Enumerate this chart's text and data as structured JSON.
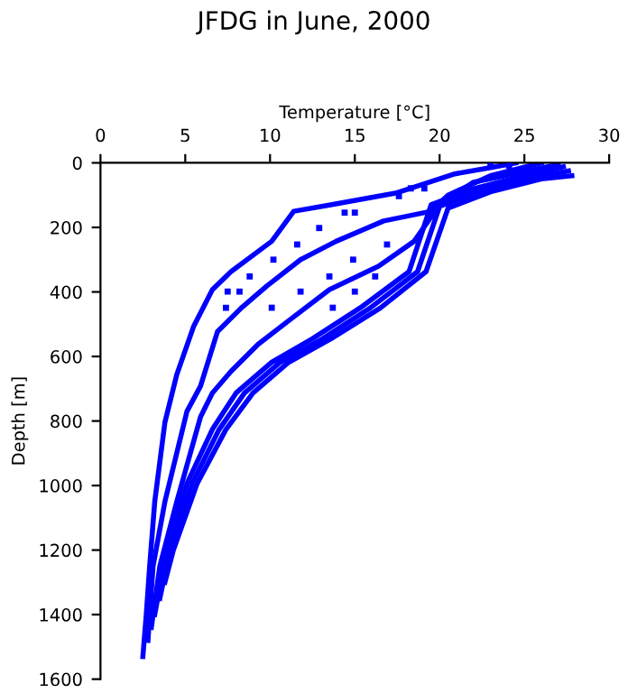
{
  "chart_data": {
    "type": "line",
    "title": "JFDG in June, 2000",
    "xlabel": "Temperature [°C]",
    "ylabel": "Depth [m]",
    "xlim": [
      0,
      30
    ],
    "xticks": [
      0,
      5,
      10,
      15,
      20,
      25,
      30
    ],
    "ylim": [
      1600,
      0
    ],
    "yticks": [
      0,
      200,
      400,
      600,
      800,
      1000,
      1200,
      1400,
      1600
    ],
    "grid": false,
    "legend": false,
    "marker": "none",
    "line_style": "solid",
    "series": [
      {
        "color": "#0000ff",
        "x": [
          24.5,
          23,
          20.9,
          17.4,
          13.5,
          11.4,
          10.1,
          7.7,
          6.6,
          5.5,
          4.5,
          3.8,
          3.2,
          2.9,
          2.7,
          2.5
        ],
        "values": [
          0,
          15,
          34,
          94,
          131,
          150,
          243,
          337,
          393,
          506,
          656,
          804,
          1050,
          1250,
          1400,
          1530
        ]
      },
      {
        "color": "#0000ff",
        "x": [
          26.0,
          23,
          20.5,
          19.5,
          16.7,
          13.9,
          11.8,
          9.8,
          8.3,
          6.9,
          5.9,
          5.1,
          3.8,
          3.1,
          2.8
        ],
        "values": [
          0,
          40,
          100,
          150,
          180,
          243,
          300,
          382,
          450,
          523,
          692,
          770,
          1050,
          1250,
          1480
        ]
      },
      {
        "color": "#0000ff",
        "x": [
          27.0,
          22,
          20,
          18.5,
          16.4,
          13.5,
          11.1,
          9.3,
          7.7,
          6.6,
          5.9,
          4.5,
          3.5,
          3.0
        ],
        "values": [
          5,
          60,
          130,
          243,
          320,
          393,
          489,
          562,
          646,
          713,
          787,
          1050,
          1250,
          1440
        ]
      },
      {
        "color": "#0000ff",
        "x": [
          27.3,
          25,
          22,
          19.5,
          18.2,
          15.3,
          12.5,
          10.1,
          8.0,
          6.6,
          5.1,
          3.9,
          3.2
        ],
        "values": [
          12,
          40,
          80,
          130,
          337,
          450,
          545,
          618,
          713,
          826,
          994,
          1200,
          1400
        ]
      },
      {
        "color": "#0000ff",
        "x": [
          27.6,
          25.5,
          22.5,
          20.0,
          18.7,
          15.9,
          13.1,
          10.6,
          8.5,
          7.0,
          5.4,
          4.1,
          3.5
        ],
        "values": [
          25,
          45,
          85,
          135,
          337,
          450,
          545,
          618,
          713,
          826,
          994,
          1200,
          1350
        ]
      },
      {
        "color": "#0000ff",
        "x": [
          27.8,
          26,
          23,
          20.5,
          19.2,
          16.5,
          13.6,
          11.1,
          9.0,
          7.4,
          5.7,
          4.3,
          3.8
        ],
        "values": [
          40,
          50,
          90,
          140,
          337,
          450,
          545,
          618,
          713,
          826,
          994,
          1200,
          1300
        ]
      },
      {
        "type": "scatter",
        "marker": "square",
        "color": "#0000ff",
        "x": [
          18.3,
          19.1,
          17.6,
          14.4,
          15.0,
          12.9,
          11.6,
          10.2,
          8.8,
          7.5,
          8.2,
          7.4,
          10.1,
          11.8,
          13.7,
          15.0,
          13.5,
          14.9,
          16.9,
          16.2,
          23.0,
          24.1
        ],
        "values": [
          79,
          79,
          103,
          154,
          154,
          202,
          253,
          300,
          352,
          399,
          399,
          449,
          449,
          399,
          449,
          399,
          352,
          300,
          253,
          352,
          9,
          9
        ]
      }
    ]
  }
}
